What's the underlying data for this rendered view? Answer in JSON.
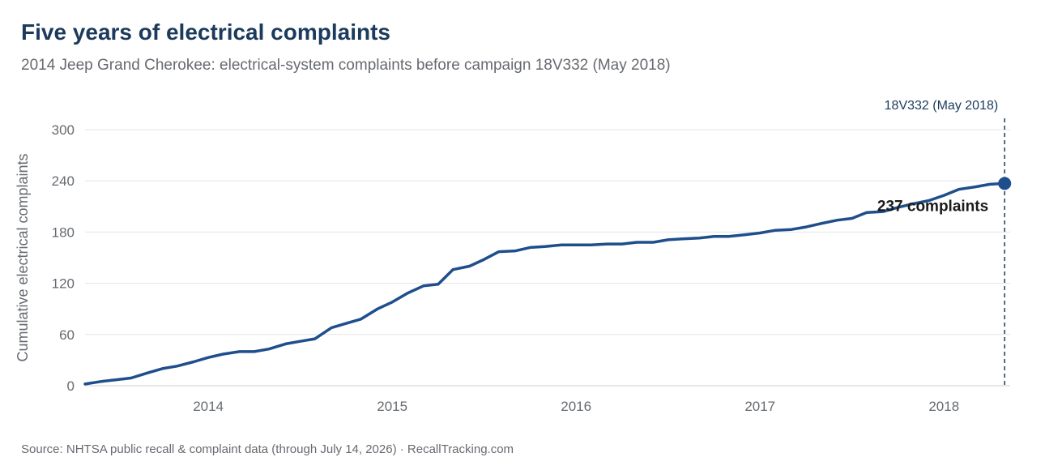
{
  "title": "Five years of electrical complaints",
  "subtitle": "2014 Jeep Grand Cherokee: electrical-system complaints before campaign 18V332 (May 2018)",
  "source": "Source: NHTSA public recall & complaint data (through July 14, 2026) · RecallTracking.com",
  "colors": {
    "line": "#1f4e8c",
    "grid": "#e5e5e5",
    "text": "#666a70",
    "title": "#1b3a5c"
  },
  "chart_data": {
    "type": "line",
    "title": "Five years of electrical complaints",
    "xlabel": "",
    "ylabel": "Cumulative electrical complaints",
    "x_ticks": [
      "2014",
      "2015",
      "2016",
      "2017",
      "2018"
    ],
    "y_ticks": [
      0,
      60,
      120,
      180,
      240,
      300
    ],
    "ylim": [
      0,
      300
    ],
    "xlim": [
      2013.33,
      2018.36
    ],
    "grid": "horizontal",
    "marker": {
      "label": "18V332 (May 2018)",
      "x": 2018.33
    },
    "end_label": "237 complaints",
    "end_value": 237,
    "series": [
      {
        "x": [
          2013.33,
          2013.42,
          2013.5,
          2013.58,
          2013.67,
          2013.75,
          2013.83,
          2013.92,
          2014.0,
          2014.08,
          2014.17,
          2014.25,
          2014.33,
          2014.42,
          2014.5,
          2014.58,
          2014.67,
          2014.75,
          2014.83,
          2014.92,
          2015.0,
          2015.08,
          2015.17,
          2015.25,
          2015.33,
          2015.42,
          2015.5,
          2015.58,
          2015.67,
          2015.75,
          2015.83,
          2015.92,
          2016.0,
          2016.08,
          2016.17,
          2016.25,
          2016.33,
          2016.42,
          2016.5,
          2016.58,
          2016.67,
          2016.75,
          2016.83,
          2016.92,
          2017.0,
          2017.08,
          2017.17,
          2017.25,
          2017.33,
          2017.42,
          2017.5,
          2017.58,
          2017.67,
          2017.75,
          2017.83,
          2017.92,
          2018.0,
          2018.08,
          2018.17,
          2018.25,
          2018.33
        ],
        "values": [
          2,
          5,
          7,
          9,
          15,
          20,
          23,
          28,
          33,
          37,
          40,
          40,
          43,
          49,
          52,
          55,
          68,
          73,
          78,
          90,
          98,
          108,
          117,
          119,
          136,
          140,
          148,
          157,
          158,
          162,
          163,
          165,
          165,
          165,
          166,
          166,
          168,
          168,
          171,
          172,
          173,
          175,
          175,
          177,
          179,
          182,
          183,
          186,
          190,
          194,
          196,
          203,
          204,
          209,
          213,
          217,
          223,
          230,
          233,
          236,
          237
        ]
      }
    ]
  }
}
